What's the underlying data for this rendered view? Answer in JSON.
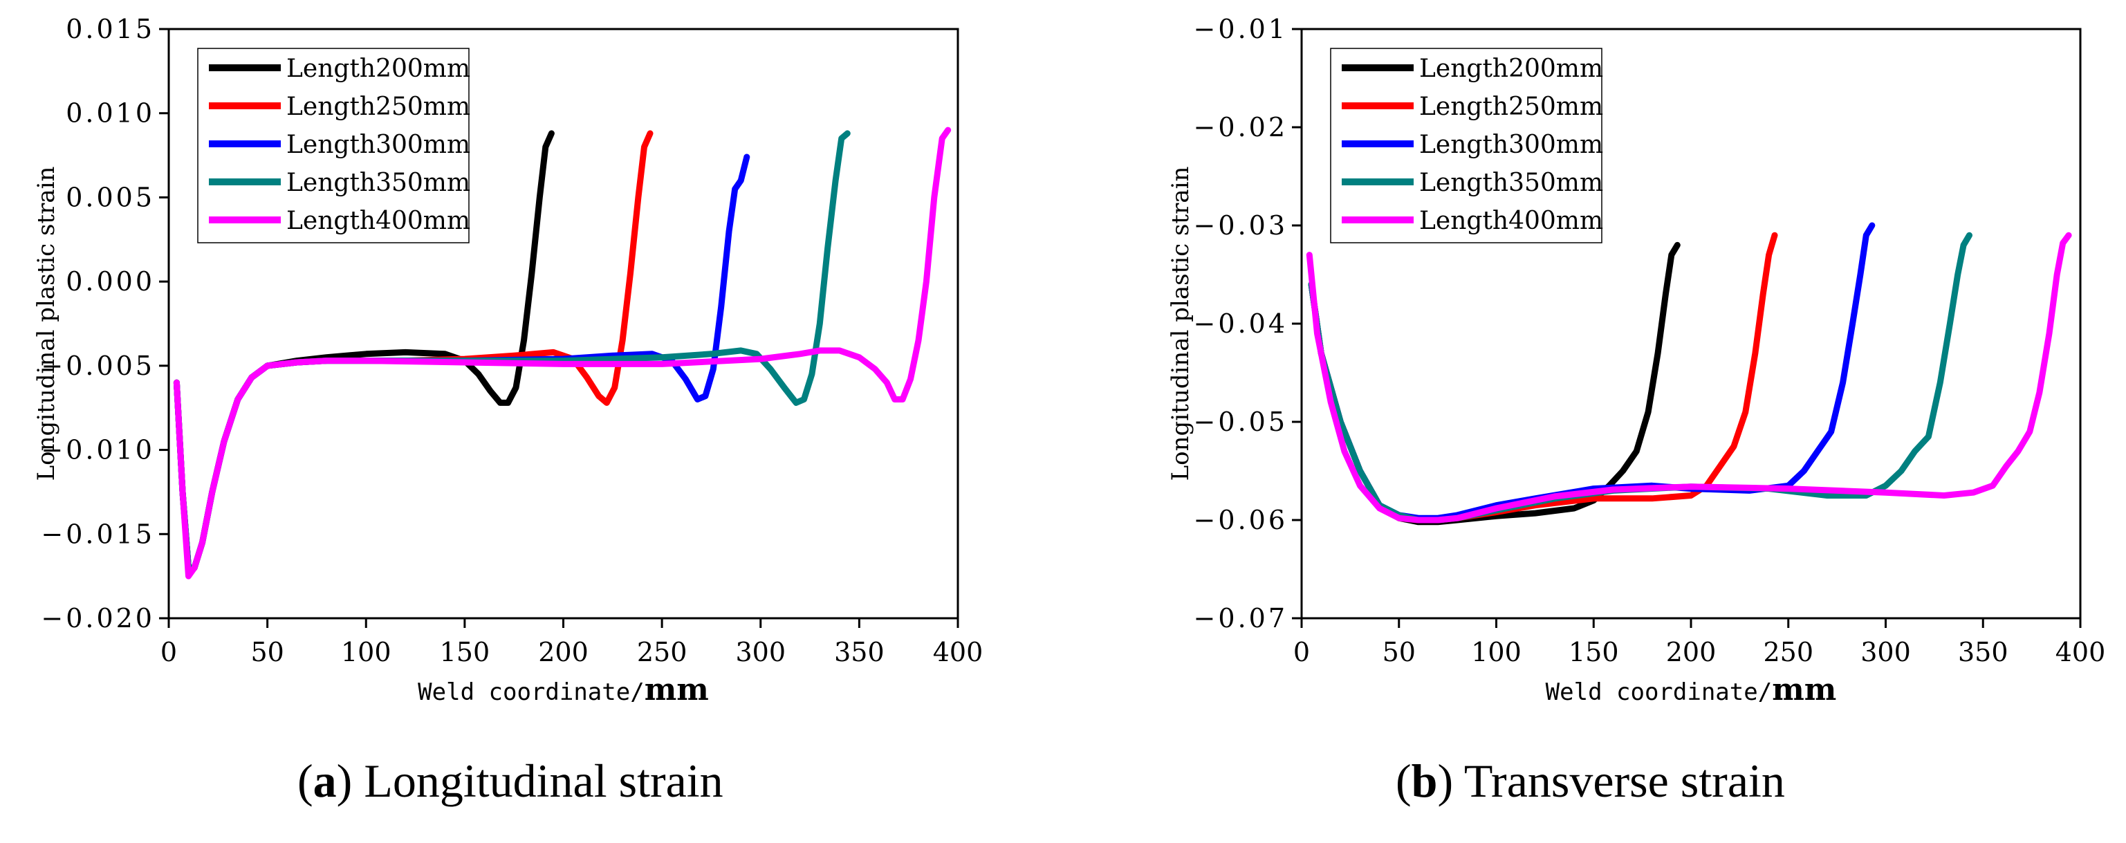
{
  "chart_data": [
    {
      "type": "line",
      "caption": {
        "letter": "a",
        "text": "Longitudinal strain"
      },
      "xlabel": {
        "prefix": "Weld coordinate/",
        "unit": "mm"
      },
      "ylabel": "Longitudinal plastic strain",
      "xlim": [
        0,
        400
      ],
      "ylim": [
        -0.02,
        0.015
      ],
      "xticks": [
        0,
        50,
        100,
        150,
        200,
        250,
        300,
        350,
        400
      ],
      "xtick_labels": [
        "0",
        "50",
        "100",
        "150",
        "200",
        "250",
        "300",
        "350",
        "400"
      ],
      "yticks": [
        -0.02,
        -0.015,
        -0.01,
        -0.005,
        0.0,
        0.005,
        0.01,
        0.015
      ],
      "ytick_labels": [
        "-0.020",
        "-0.015",
        "-0.010",
        "-0.005",
        "0.000",
        "0.005",
        "0.010",
        "0.015"
      ],
      "legend_position": "top-left",
      "series": [
        {
          "name": "Length200mm",
          "color": "#000000",
          "x": [
            4,
            7,
            10,
            13,
            17,
            22,
            28,
            35,
            42,
            50,
            65,
            80,
            100,
            120,
            140,
            150,
            157,
            163,
            168,
            172,
            176,
            180,
            184,
            188,
            191,
            194
          ],
          "y": [
            -0.006,
            -0.0125,
            -0.017,
            -0.017,
            -0.0155,
            -0.0125,
            -0.0095,
            -0.007,
            -0.0057,
            -0.005,
            -0.0047,
            -0.0045,
            -0.0043,
            -0.0042,
            -0.0043,
            -0.0047,
            -0.0055,
            -0.0065,
            -0.0072,
            -0.0072,
            -0.0063,
            -0.0035,
            0.0005,
            0.005,
            0.008,
            0.0088
          ]
        },
        {
          "name": "Length250mm",
          "color": "#ff0000",
          "x": [
            4,
            7,
            10,
            13,
            17,
            22,
            28,
            35,
            42,
            50,
            65,
            80,
            100,
            120,
            150,
            175,
            195,
            205,
            212,
            218,
            222,
            226,
            230,
            234,
            238,
            241,
            244
          ],
          "y": [
            -0.006,
            -0.0125,
            -0.017,
            -0.017,
            -0.0155,
            -0.0125,
            -0.0095,
            -0.007,
            -0.0057,
            -0.005,
            -0.0048,
            -0.0047,
            -0.0047,
            -0.0047,
            -0.0046,
            -0.0044,
            -0.0042,
            -0.0046,
            -0.0057,
            -0.0068,
            -0.0072,
            -0.0063,
            -0.0035,
            0.0005,
            0.005,
            0.008,
            0.0088
          ]
        },
        {
          "name": "Length300mm",
          "color": "#0000ff",
          "x": [
            4,
            7,
            10,
            13,
            17,
            22,
            28,
            35,
            42,
            50,
            65,
            80,
            100,
            150,
            200,
            225,
            245,
            255,
            262,
            268,
            272,
            276,
            280,
            284,
            287,
            290,
            293
          ],
          "y": [
            -0.006,
            -0.0125,
            -0.017,
            -0.017,
            -0.0155,
            -0.0125,
            -0.0095,
            -0.007,
            -0.0057,
            -0.005,
            -0.0048,
            -0.0047,
            -0.0047,
            -0.0047,
            -0.0046,
            -0.0044,
            -0.0043,
            -0.0047,
            -0.0058,
            -0.007,
            -0.0068,
            -0.0052,
            -0.0015,
            0.003,
            0.0055,
            0.006,
            0.0074
          ]
        },
        {
          "name": "Length350mm",
          "color": "#008080",
          "x": [
            4,
            7,
            10,
            13,
            17,
            22,
            28,
            35,
            42,
            50,
            65,
            80,
            100,
            150,
            200,
            250,
            275,
            290,
            298,
            305,
            312,
            318,
            322,
            326,
            330,
            334,
            338,
            341,
            344
          ],
          "y": [
            -0.006,
            -0.0125,
            -0.017,
            -0.017,
            -0.0155,
            -0.0125,
            -0.0095,
            -0.007,
            -0.0057,
            -0.005,
            -0.0048,
            -0.0047,
            -0.0047,
            -0.0047,
            -0.0047,
            -0.0045,
            -0.0043,
            -0.0041,
            -0.0043,
            -0.0052,
            -0.0063,
            -0.0072,
            -0.007,
            -0.0055,
            -0.0025,
            0.002,
            0.006,
            0.0085,
            0.0088
          ]
        },
        {
          "name": "Length400mm",
          "color": "#ff00ff",
          "x": [
            4,
            7,
            10,
            13,
            17,
            22,
            28,
            35,
            42,
            50,
            65,
            80,
            100,
            150,
            200,
            250,
            300,
            320,
            330,
            340,
            350,
            358,
            364,
            368,
            372,
            376,
            380,
            384,
            388,
            392,
            395
          ],
          "y": [
            -0.006,
            -0.0125,
            -0.0175,
            -0.017,
            -0.0155,
            -0.0125,
            -0.0095,
            -0.007,
            -0.0057,
            -0.005,
            -0.0048,
            -0.0047,
            -0.0047,
            -0.0048,
            -0.0049,
            -0.0049,
            -0.0046,
            -0.0043,
            -0.0041,
            -0.0041,
            -0.0045,
            -0.0052,
            -0.006,
            -0.007,
            -0.007,
            -0.0058,
            -0.0035,
            0.0,
            0.005,
            0.0085,
            0.009
          ]
        }
      ]
    },
    {
      "type": "line",
      "caption": {
        "letter": "b",
        "text": "Transverse strain"
      },
      "xlabel": {
        "prefix": "Weld coordinate/",
        "unit": "mm"
      },
      "ylabel": "Longitudinal plastic strain",
      "xlim": [
        0,
        400
      ],
      "ylim": [
        -0.07,
        -0.01
      ],
      "xticks": [
        0,
        50,
        100,
        150,
        200,
        250,
        300,
        350,
        400
      ],
      "xtick_labels": [
        "0",
        "50",
        "100",
        "150",
        "200",
        "250",
        "300",
        "350",
        "400"
      ],
      "yticks": [
        -0.07,
        -0.06,
        -0.05,
        -0.04,
        -0.03,
        -0.02,
        -0.01
      ],
      "ytick_labels": [
        "-0.07",
        "-0.06",
        "-0.05",
        "-0.04",
        "-0.03",
        "-0.02",
        "-0.01"
      ],
      "legend_position": "top-left",
      "series": [
        {
          "name": "Length200mm",
          "color": "#000000",
          "x": [
            5,
            10,
            20,
            30,
            40,
            50,
            60,
            70,
            80,
            100,
            120,
            140,
            150,
            158,
            165,
            172,
            178,
            183,
            187,
            190,
            193
          ],
          "y": [
            -0.036,
            -0.043,
            -0.05,
            -0.055,
            -0.0585,
            -0.0598,
            -0.0602,
            -0.0602,
            -0.06,
            -0.0596,
            -0.0593,
            -0.0588,
            -0.058,
            -0.0565,
            -0.055,
            -0.053,
            -0.049,
            -0.043,
            -0.037,
            -0.033,
            -0.032
          ]
        },
        {
          "name": "Length250mm",
          "color": "#ff0000",
          "x": [
            5,
            10,
            20,
            30,
            40,
            50,
            60,
            70,
            80,
            100,
            120,
            150,
            180,
            200,
            208,
            215,
            222,
            228,
            233,
            237,
            240,
            243
          ],
          "y": [
            -0.036,
            -0.043,
            -0.05,
            -0.055,
            -0.0585,
            -0.0598,
            -0.06,
            -0.06,
            -0.0598,
            -0.0592,
            -0.0585,
            -0.0578,
            -0.0578,
            -0.0575,
            -0.0565,
            -0.0545,
            -0.0525,
            -0.049,
            -0.043,
            -0.037,
            -0.033,
            -0.031
          ]
        },
        {
          "name": "Length300mm",
          "color": "#0000ff",
          "x": [
            5,
            10,
            20,
            30,
            40,
            50,
            60,
            70,
            80,
            100,
            120,
            150,
            180,
            200,
            230,
            250,
            258,
            265,
            272,
            278,
            283,
            287,
            290,
            293
          ],
          "y": [
            -0.036,
            -0.043,
            -0.05,
            -0.055,
            -0.0585,
            -0.0595,
            -0.0598,
            -0.0598,
            -0.0595,
            -0.0585,
            -0.0578,
            -0.0568,
            -0.0565,
            -0.0568,
            -0.057,
            -0.0565,
            -0.055,
            -0.053,
            -0.051,
            -0.046,
            -0.04,
            -0.035,
            -0.031,
            -0.03
          ]
        },
        {
          "name": "Length350mm",
          "color": "#008080",
          "x": [
            5,
            10,
            20,
            30,
            40,
            50,
            60,
            70,
            80,
            100,
            130,
            160,
            200,
            240,
            270,
            290,
            300,
            308,
            315,
            322,
            328,
            333,
            337,
            340,
            343
          ],
          "y": [
            -0.036,
            -0.043,
            -0.05,
            -0.055,
            -0.0585,
            -0.0595,
            -0.06,
            -0.06,
            -0.0598,
            -0.059,
            -0.0578,
            -0.057,
            -0.0566,
            -0.0568,
            -0.0575,
            -0.0575,
            -0.0565,
            -0.055,
            -0.053,
            -0.0515,
            -0.046,
            -0.04,
            -0.035,
            -0.032,
            -0.031
          ]
        },
        {
          "name": "Length400mm",
          "color": "#ff00ff",
          "x": [
            4,
            8,
            15,
            22,
            30,
            40,
            50,
            60,
            70,
            80,
            100,
            130,
            160,
            200,
            250,
            300,
            330,
            345,
            355,
            362,
            368,
            374,
            379,
            384,
            388,
            391,
            394
          ],
          "y": [
            -0.033,
            -0.041,
            -0.048,
            -0.053,
            -0.0565,
            -0.0588,
            -0.0598,
            -0.06,
            -0.06,
            -0.0598,
            -0.0588,
            -0.0576,
            -0.0569,
            -0.0566,
            -0.0568,
            -0.0572,
            -0.0575,
            -0.0572,
            -0.0565,
            -0.0545,
            -0.053,
            -0.051,
            -0.047,
            -0.041,
            -0.035,
            -0.0318,
            -0.031
          ]
        }
      ]
    }
  ]
}
